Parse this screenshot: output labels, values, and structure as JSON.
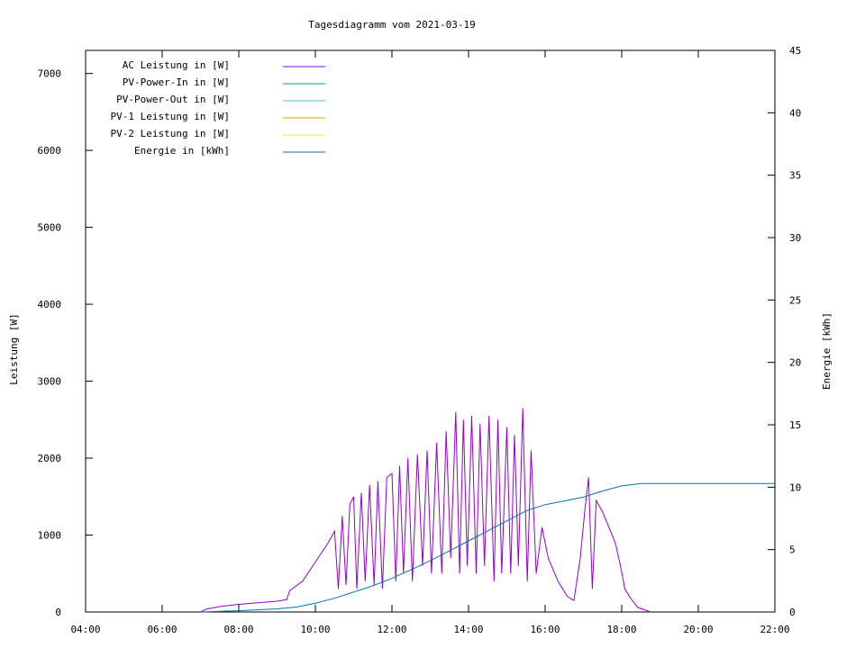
{
  "chart_data": {
    "type": "line",
    "title": "Tagesdiagramm vom 2021-03-19",
    "ylabel": "Leistung [W]",
    "y2label": "Energie [kWh]",
    "xlim": [
      "04:00",
      "22:00"
    ],
    "ylim": [
      0,
      7300
    ],
    "y2lim": [
      0,
      45
    ],
    "x_ticks": [
      "04:00",
      "06:00",
      "08:00",
      "10:00",
      "12:00",
      "14:00",
      "16:00",
      "18:00",
      "20:00",
      "22:00"
    ],
    "y_ticks": [
      0,
      1000,
      2000,
      3000,
      4000,
      5000,
      6000,
      7000
    ],
    "y2_ticks": [
      0,
      5,
      10,
      15,
      20,
      25,
      30,
      35,
      40,
      45
    ],
    "grid": false,
    "legend_position": "top-left",
    "series": [
      {
        "name": "AC Leistung in [W]",
        "color": "#9400d3",
        "axis": "left",
        "points": [
          [
            "07:00",
            0
          ],
          [
            "07:10",
            40
          ],
          [
            "07:30",
            70
          ],
          [
            "08:00",
            100
          ],
          [
            "08:30",
            120
          ],
          [
            "09:00",
            140
          ],
          [
            "09:15",
            160
          ],
          [
            "09:20",
            280
          ],
          [
            "09:40",
            400
          ],
          [
            "10:00",
            650
          ],
          [
            "10:20",
            900
          ],
          [
            "10:30",
            1050
          ],
          [
            "10:36",
            300
          ],
          [
            "10:42",
            1250
          ],
          [
            "10:48",
            350
          ],
          [
            "10:54",
            1400
          ],
          [
            "11:00",
            1500
          ],
          [
            "11:05",
            300
          ],
          [
            "11:12",
            1550
          ],
          [
            "11:18",
            400
          ],
          [
            "11:25",
            1650
          ],
          [
            "11:32",
            350
          ],
          [
            "11:38",
            1700
          ],
          [
            "11:45",
            300
          ],
          [
            "11:52",
            1750
          ],
          [
            "12:00",
            1800
          ],
          [
            "12:06",
            400
          ],
          [
            "12:12",
            1900
          ],
          [
            "12:18",
            500
          ],
          [
            "12:25",
            2000
          ],
          [
            "12:32",
            400
          ],
          [
            "12:40",
            2050
          ],
          [
            "12:48",
            600
          ],
          [
            "12:55",
            2100
          ],
          [
            "13:02",
            500
          ],
          [
            "13:10",
            2200
          ],
          [
            "13:18",
            500
          ],
          [
            "13:25",
            2350
          ],
          [
            "13:32",
            700
          ],
          [
            "13:40",
            2600
          ],
          [
            "13:46",
            500
          ],
          [
            "13:52",
            2500
          ],
          [
            "13:58",
            600
          ],
          [
            "14:05",
            2550
          ],
          [
            "14:12",
            500
          ],
          [
            "14:18",
            2450
          ],
          [
            "14:25",
            600
          ],
          [
            "14:32",
            2550
          ],
          [
            "14:40",
            400
          ],
          [
            "14:46",
            2500
          ],
          [
            "14:52",
            500
          ],
          [
            "15:00",
            2400
          ],
          [
            "15:06",
            500
          ],
          [
            "15:12",
            2300
          ],
          [
            "15:18",
            600
          ],
          [
            "15:25",
            2650
          ],
          [
            "15:32",
            400
          ],
          [
            "15:38",
            2100
          ],
          [
            "15:46",
            500
          ],
          [
            "15:55",
            1100
          ],
          [
            "16:05",
            700
          ],
          [
            "16:20",
            400
          ],
          [
            "16:35",
            200
          ],
          [
            "16:45",
            150
          ],
          [
            "16:55",
            700
          ],
          [
            "17:02",
            1300
          ],
          [
            "17:08",
            1750
          ],
          [
            "17:14",
            300
          ],
          [
            "17:20",
            1450
          ],
          [
            "17:30",
            1300
          ],
          [
            "17:40",
            1100
          ],
          [
            "17:50",
            900
          ],
          [
            "17:58",
            600
          ],
          [
            "18:05",
            300
          ],
          [
            "18:12",
            200
          ],
          [
            "18:25",
            60
          ],
          [
            "18:45",
            0
          ]
        ]
      },
      {
        "name": "PV-Power-In in [W]",
        "color": "#009e73",
        "axis": "left",
        "points": []
      },
      {
        "name": "PV-Power-Out in [W]",
        "color": "#56b4e9",
        "axis": "left",
        "points": []
      },
      {
        "name": "PV-1 Leistung in [W]",
        "color": "#e69f00",
        "axis": "left",
        "points": []
      },
      {
        "name": "PV-2 Leistung in [W]",
        "color": "#f0e442",
        "axis": "left",
        "points": []
      },
      {
        "name": "Energie in [kWh]",
        "color": "#0072b2",
        "axis": "right",
        "points": [
          [
            "07:00",
            0
          ],
          [
            "08:00",
            0.1
          ],
          [
            "09:00",
            0.25
          ],
          [
            "09:30",
            0.4
          ],
          [
            "10:00",
            0.7
          ],
          [
            "10:30",
            1.1
          ],
          [
            "11:00",
            1.6
          ],
          [
            "11:30",
            2.1
          ],
          [
            "12:00",
            2.7
          ],
          [
            "12:30",
            3.4
          ],
          [
            "13:00",
            4.1
          ],
          [
            "13:30",
            4.9
          ],
          [
            "14:00",
            5.7
          ],
          [
            "14:30",
            6.5
          ],
          [
            "15:00",
            7.3
          ],
          [
            "15:30",
            8.1
          ],
          [
            "16:00",
            8.6
          ],
          [
            "16:30",
            8.9
          ],
          [
            "17:00",
            9.2
          ],
          [
            "17:30",
            9.7
          ],
          [
            "18:00",
            10.1
          ],
          [
            "18:30",
            10.3
          ],
          [
            "19:00",
            10.3
          ],
          [
            "22:00",
            10.3
          ]
        ]
      }
    ]
  }
}
